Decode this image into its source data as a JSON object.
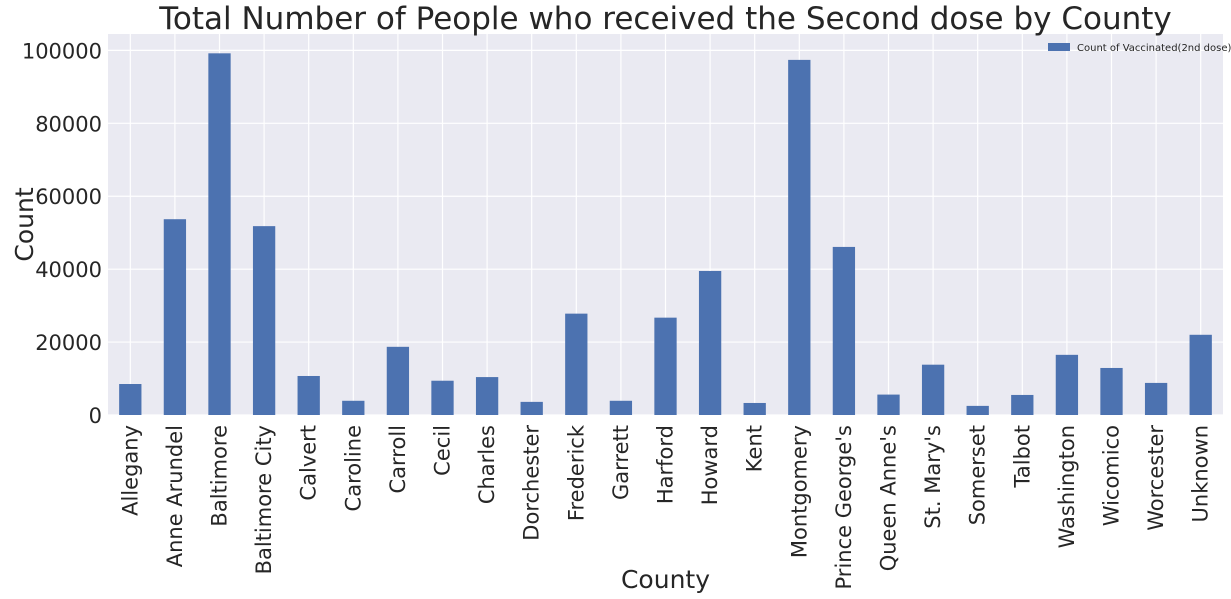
{
  "chart_data": {
    "type": "bar",
    "title": "Total Number of People who received the Second dose by County",
    "xlabel": "County",
    "ylabel": "Count",
    "categories": [
      "Allegany",
      "Anne Arundel",
      "Baltimore",
      "Baltimore City",
      "Calvert",
      "Caroline",
      "Carroll",
      "Cecil",
      "Charles",
      "Dorchester",
      "Frederick",
      "Garrett",
      "Harford",
      "Howard",
      "Kent",
      "Montgomery",
      "Prince George's",
      "Queen Anne's",
      "St. Mary's",
      "Somerset",
      "Talbot",
      "Washington",
      "Wicomico",
      "Worcester",
      "Unknown"
    ],
    "series": [
      {
        "name": "Count of Vaccinated(2nd dose)",
        "values": [
          8500,
          53700,
          99200,
          51800,
          10700,
          3900,
          18700,
          9400,
          10400,
          3600,
          27800,
          3900,
          26700,
          39500,
          3300,
          97400,
          46100,
          5600,
          13800,
          2500,
          5500,
          16500,
          12900,
          8800,
          22000
        ]
      }
    ],
    "yticks": [
      "0",
      "20000",
      "40000",
      "60000",
      "80000",
      "100000"
    ],
    "ylim": [
      0,
      104500
    ],
    "grid": true,
    "legend_position": "top-right",
    "colors": {
      "bar": "#4c72b0",
      "plot_background": "#eaeaf2",
      "grid": "#ffffff",
      "text": "#262626"
    }
  }
}
